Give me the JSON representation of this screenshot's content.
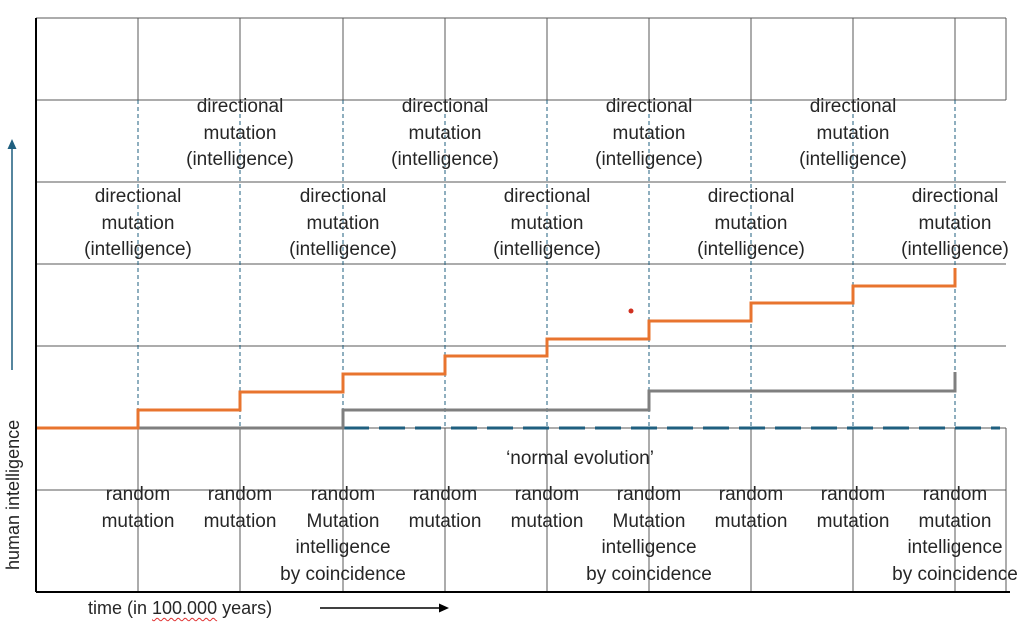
{
  "axes": {
    "y_label": "human intelligence",
    "x_label_prefix": "time (in ",
    "x_label_value": "100.000",
    "x_label_suffix": " years)"
  },
  "normal_evolution_label": "‘normal evolution’",
  "upper_labels": {
    "row1": [
      [
        "directional",
        "mutation",
        "(intelligence)"
      ],
      [
        "directional",
        "mutation",
        "(intelligence)"
      ],
      [
        "directional",
        "mutation",
        "(intelligence)"
      ],
      [
        "directional",
        "mutation",
        "(intelligence)"
      ]
    ],
    "row2": [
      [
        "directional",
        "mutation",
        "(intelligence)"
      ],
      [
        "directional",
        "mutation",
        "(intelligence)"
      ],
      [
        "directional",
        "mutation",
        "(intelligence)"
      ],
      [
        "directional",
        "mutation",
        "(intelligence)"
      ],
      [
        "directional",
        "mutation",
        "(intelligence)"
      ]
    ]
  },
  "lower_labels": [
    [
      "random",
      "mutation"
    ],
    [
      "random",
      "mutation"
    ],
    [
      "random",
      "Mutation",
      "intelligence",
      "by coincidence"
    ],
    [
      "random",
      "mutation"
    ],
    [
      "random",
      "mutation"
    ],
    [
      "random",
      "Mutation",
      "intelligence",
      "by coincidence"
    ],
    [
      "random",
      "mutation"
    ],
    [
      "random",
      "mutation"
    ],
    [
      "random",
      "mutation",
      "intelligence",
      "by coincidence"
    ]
  ],
  "colors": {
    "directional_line": "#e8742f",
    "random_line": "#7f7f7f",
    "normal_line": "#1f5f7f",
    "axis": "#000000",
    "grid": "#595959",
    "arrow": "#1f5f7f"
  }
}
